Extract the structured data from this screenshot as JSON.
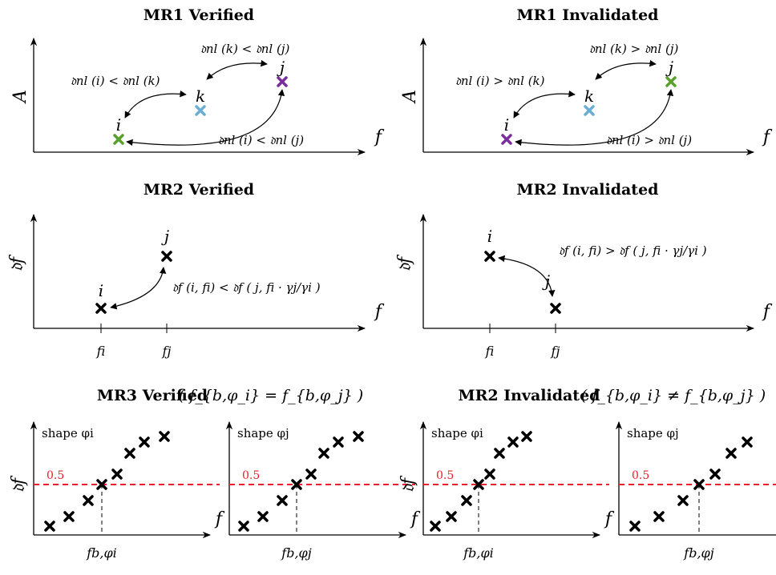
{
  "titles": {
    "mr1_verified": "MR1 Verified",
    "mr1_invalidated": "MR1 Invalidated",
    "mr2_verified": "MR2 Verified",
    "mr2_invalidated": "MR2 Invalidated",
    "mr3_verified": "MR3 Verified",
    "mr3_verified_cond": "( f_{b,φ_i} = f_{b,φ_j} )",
    "mr2_invalidated_bottom": "MR2 Invalidated",
    "mr2_invalidated_bottom_cond": "( f_{b,φ_i} ≠ f_{b,φ_j} )"
  },
  "axes": {
    "amplitude": "A",
    "frequency": "f",
    "d_f": "𝔡f"
  },
  "points": {
    "i": "i",
    "j": "j",
    "k": "k"
  },
  "relations": {
    "mr1_v_ik": "𝔡nl (i) < 𝔡nl (k)",
    "mr1_v_kj": "𝔡nl (k) < 𝔡nl (j)",
    "mr1_v_ij": "𝔡nl (i) < 𝔡nl (j)",
    "mr1_i_ik": "𝔡nl (i) > 𝔡nl (k)",
    "mr1_i_kj": "𝔡nl (k) > 𝔡nl (j)",
    "mr1_i_ij": "𝔡nl (i) > 𝔡nl (j)",
    "mr2_v": "𝔡f (i, fi) < 𝔡f ( j, fi · γj/γi )",
    "mr2_i": "𝔡f (i, fi) > 𝔡f ( j, fi · γj/γi )"
  },
  "ticks": {
    "fi": "fi",
    "fj": "fj",
    "fb_phi_i": "fb,φi",
    "fb_phi_j": "fb,φj"
  },
  "shapes": {
    "phi_i": "shape φi",
    "phi_j": "shape φj"
  },
  "threshold_label": "0.5",
  "colors": {
    "green": "#5aa02c",
    "blue": "#6aaed6",
    "purple": "#7a2e9e",
    "black": "#000000",
    "red": "#e8212b"
  }
}
